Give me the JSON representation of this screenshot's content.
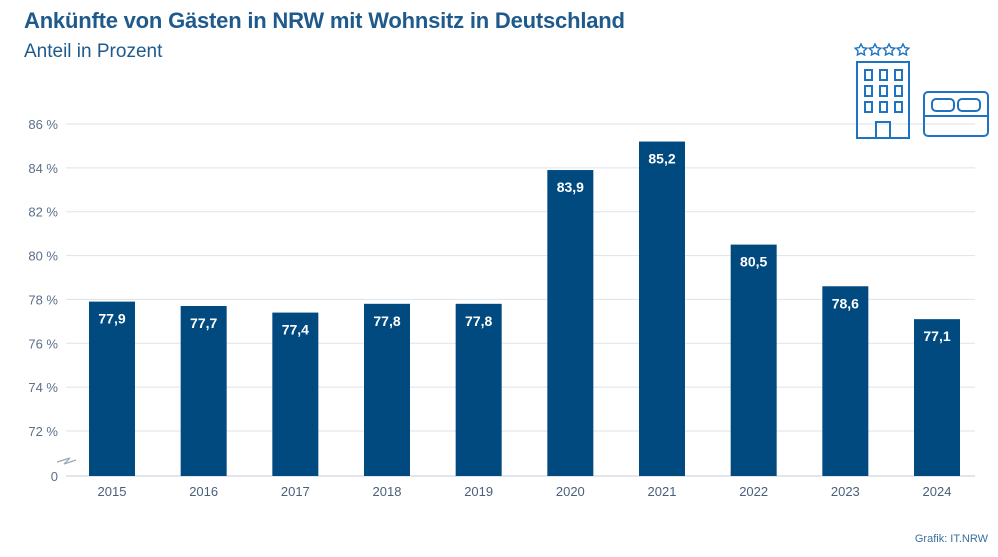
{
  "title": "Ankünfte von Gästen in NRW mit Wohnsitz in Deutschland",
  "subtitle": "Anteil in Prozent",
  "credit": "Grafik: IT.NRW",
  "chart_data": {
    "type": "bar",
    "title": "Ankünfte von Gästen in NRW mit Wohnsitz in Deutschland",
    "subtitle": "Anteil in Prozent",
    "xlabel": "",
    "ylabel": "",
    "categories": [
      "2015",
      "2016",
      "2017",
      "2018",
      "2019",
      "2020",
      "2021",
      "2022",
      "2023",
      "2024"
    ],
    "values": [
      77.9,
      77.7,
      77.4,
      77.8,
      77.8,
      83.9,
      85.2,
      80.5,
      78.6,
      77.1
    ],
    "value_labels": [
      "77,9",
      "77,7",
      "77,4",
      "77,8",
      "77,8",
      "83,9",
      "85,2",
      "80,5",
      "78,6",
      "77,1"
    ],
    "ylim": [
      70,
      86
    ],
    "yticks": [
      72,
      74,
      76,
      78,
      80,
      82,
      84,
      86
    ],
    "ytick_labels": [
      "72 %",
      "74 %",
      "76 %",
      "78 %",
      "80 %",
      "82 %",
      "84 %",
      "86 %"
    ],
    "y_baseline_label": "0",
    "axis_break": true,
    "grid": true,
    "bar_color": "#004a7f",
    "grid_color": "#dde3ea",
    "text_color": "#1f5a8c"
  },
  "icons": [
    "hotel-icon",
    "bed-icon"
  ]
}
